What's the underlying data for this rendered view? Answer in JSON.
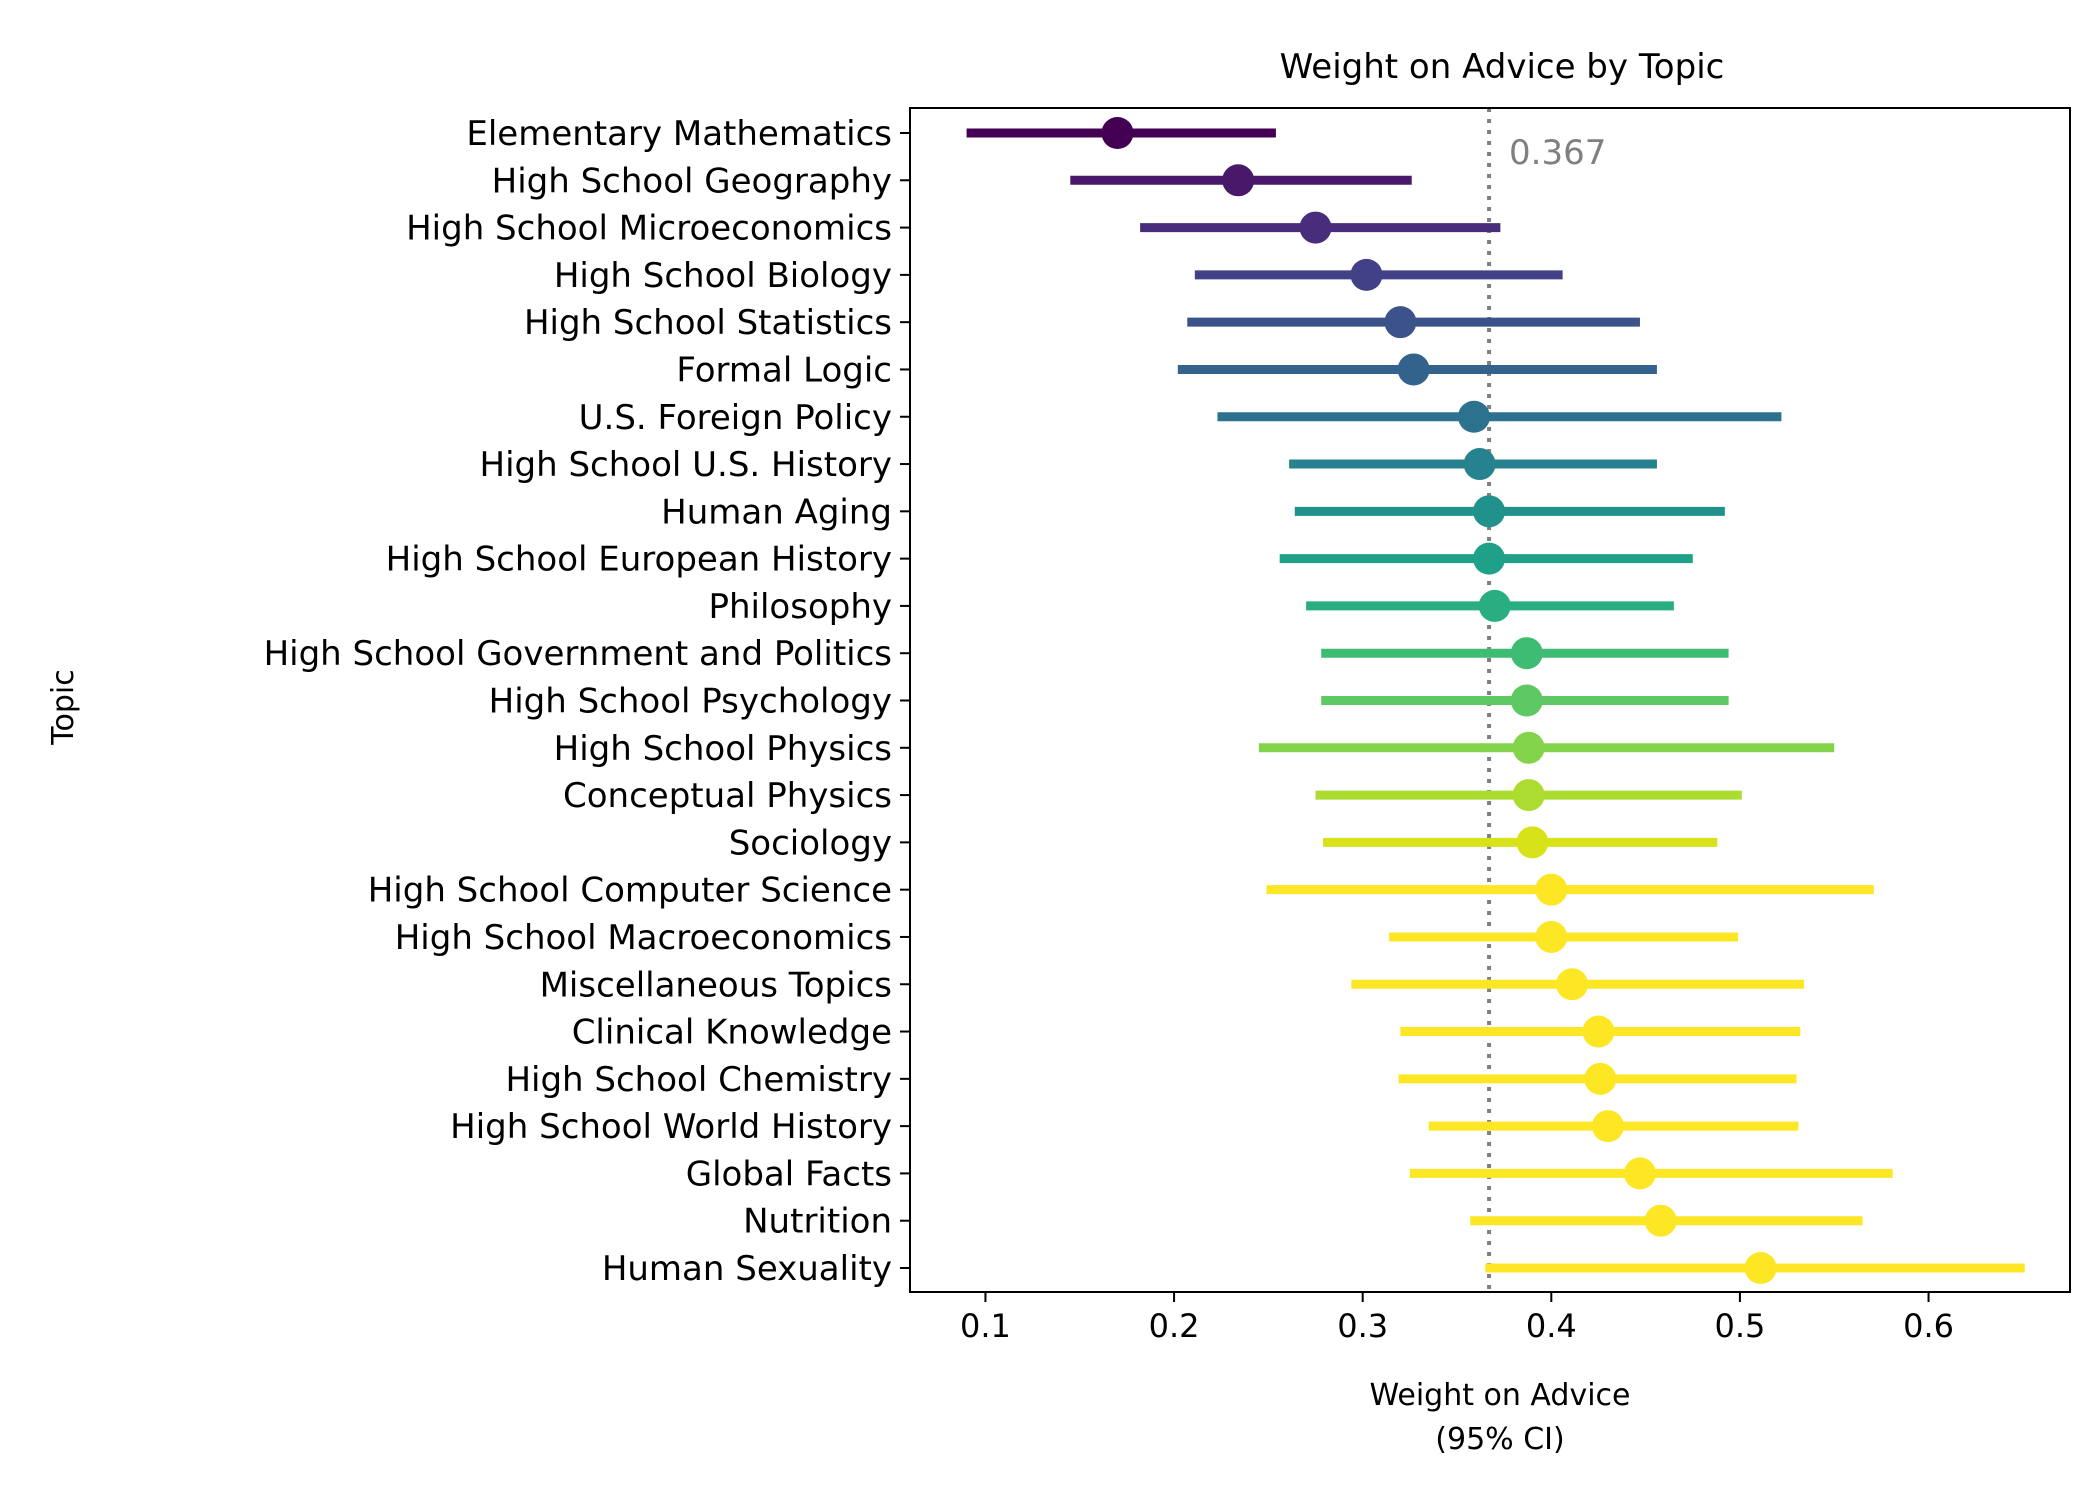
{
  "chart_data": {
    "type": "scatter",
    "title": "Weight on Advice by Topic",
    "xlabel": [
      "Weight on Advice",
      "(95% CI)"
    ],
    "ylabel": "Topic",
    "xlim": [
      0.06,
      0.675
    ],
    "xticks": [
      0.1,
      0.2,
      0.3,
      0.4,
      0.5,
      0.6
    ],
    "xtick_labels": [
      "0.1",
      "0.2",
      "0.3",
      "0.4",
      "0.5",
      "0.6"
    ],
    "reference_line": {
      "value": 0.367,
      "label": "0.367",
      "style": "dotted",
      "color": "#808080"
    },
    "grid": false,
    "colormap": "viridis",
    "points": [
      {
        "topic": "Elementary Mathematics",
        "mean": 0.17,
        "lo": 0.09,
        "hi": 0.254,
        "color": "#440154"
      },
      {
        "topic": "High School Geography",
        "mean": 0.234,
        "lo": 0.145,
        "hi": 0.326,
        "color": "#48186a"
      },
      {
        "topic": "High School Microeconomics",
        "mean": 0.275,
        "lo": 0.182,
        "hi": 0.373,
        "color": "#472d7b"
      },
      {
        "topic": "High School Biology",
        "mean": 0.302,
        "lo": 0.211,
        "hi": 0.406,
        "color": "#424086"
      },
      {
        "topic": "High School Statistics",
        "mean": 0.32,
        "lo": 0.207,
        "hi": 0.447,
        "color": "#3b528b"
      },
      {
        "topic": "Formal Logic",
        "mean": 0.327,
        "lo": 0.202,
        "hi": 0.456,
        "color": "#33638d"
      },
      {
        "topic": "U.S. Foreign Policy",
        "mean": 0.359,
        "lo": 0.223,
        "hi": 0.522,
        "color": "#2c728e"
      },
      {
        "topic": "High School U.S. History",
        "mean": 0.362,
        "lo": 0.261,
        "hi": 0.456,
        "color": "#26828e"
      },
      {
        "topic": "Human Aging",
        "mean": 0.367,
        "lo": 0.264,
        "hi": 0.492,
        "color": "#21918c"
      },
      {
        "topic": "High School European History",
        "mean": 0.367,
        "lo": 0.256,
        "hi": 0.475,
        "color": "#1fa088"
      },
      {
        "topic": "Philosophy",
        "mean": 0.37,
        "lo": 0.27,
        "hi": 0.465,
        "color": "#28ae80"
      },
      {
        "topic": "High School Government and Politics",
        "mean": 0.387,
        "lo": 0.278,
        "hi": 0.494,
        "color": "#3fbc73"
      },
      {
        "topic": "High School Psychology",
        "mean": 0.387,
        "lo": 0.278,
        "hi": 0.494,
        "color": "#5ec962"
      },
      {
        "topic": "High School Physics",
        "mean": 0.388,
        "lo": 0.245,
        "hi": 0.55,
        "color": "#84d44b"
      },
      {
        "topic": "Conceptual Physics",
        "mean": 0.388,
        "lo": 0.275,
        "hi": 0.501,
        "color": "#addc30"
      },
      {
        "topic": "Sociology",
        "mean": 0.39,
        "lo": 0.279,
        "hi": 0.488,
        "color": "#d8e219"
      },
      {
        "topic": "High School Computer Science",
        "mean": 0.4,
        "lo": 0.249,
        "hi": 0.571,
        "color": "#fde725"
      },
      {
        "topic": "High School Macroeconomics",
        "mean": 0.4,
        "lo": 0.314,
        "hi": 0.499,
        "color": "#fde725"
      },
      {
        "topic": "Miscellaneous Topics",
        "mean": 0.411,
        "lo": 0.294,
        "hi": 0.534,
        "color": "#fde725"
      },
      {
        "topic": "Clinical Knowledge",
        "mean": 0.425,
        "lo": 0.32,
        "hi": 0.532,
        "color": "#fde725"
      },
      {
        "topic": "High School Chemistry",
        "mean": 0.426,
        "lo": 0.319,
        "hi": 0.53,
        "color": "#fde725"
      },
      {
        "topic": "High School World History",
        "mean": 0.43,
        "lo": 0.335,
        "hi": 0.531,
        "color": "#fde725"
      },
      {
        "topic": "Global Facts",
        "mean": 0.447,
        "lo": 0.325,
        "hi": 0.581,
        "color": "#fde725"
      },
      {
        "topic": "Nutrition",
        "mean": 0.458,
        "lo": 0.357,
        "hi": 0.565,
        "color": "#fde725"
      },
      {
        "topic": "Human Sexuality",
        "mean": 0.511,
        "lo": 0.365,
        "hi": 0.651,
        "color": "#fde725"
      }
    ]
  }
}
